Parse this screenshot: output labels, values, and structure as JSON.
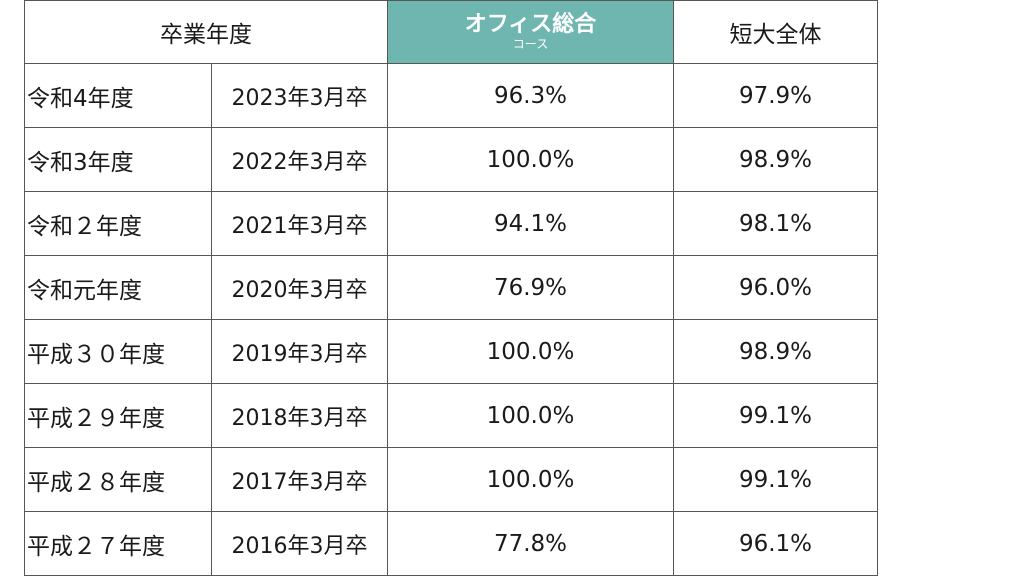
{
  "header": {
    "graduation_year": "卒業年度",
    "office_course_main": "オフィス総合",
    "office_course_sub": "コース",
    "college_total": "短大全体"
  },
  "rows": [
    {
      "era": "令和4年度",
      "grad": "2023年3月卒",
      "course": "96.3%",
      "total": "97.9%"
    },
    {
      "era": "令和3年度",
      "grad": "2022年3月卒",
      "course": "100.0%",
      "total": "98.9%"
    },
    {
      "era": "令和２年度",
      "grad": "2021年3月卒",
      "course": "94.1%",
      "total": "98.1%"
    },
    {
      "era": "令和元年度",
      "grad": "2020年3月卒",
      "course": "76.9%",
      "total": "96.0%"
    },
    {
      "era": "平成３０年度",
      "grad": "2019年3月卒",
      "course": "100.0%",
      "total": "98.9%"
    },
    {
      "era": "平成２９年度",
      "grad": "2018年3月卒",
      "course": "100.0%",
      "total": "99.1%"
    },
    {
      "era": "平成２８年度",
      "grad": "2017年3月卒",
      "course": "100.0%",
      "total": "99.1%"
    },
    {
      "era": "平成２７年度",
      "grad": "2016年3月卒",
      "course": "77.8%",
      "total": "96.1%"
    }
  ],
  "colors": {
    "header_accent": "#6fb6b0",
    "border": "#555555"
  }
}
